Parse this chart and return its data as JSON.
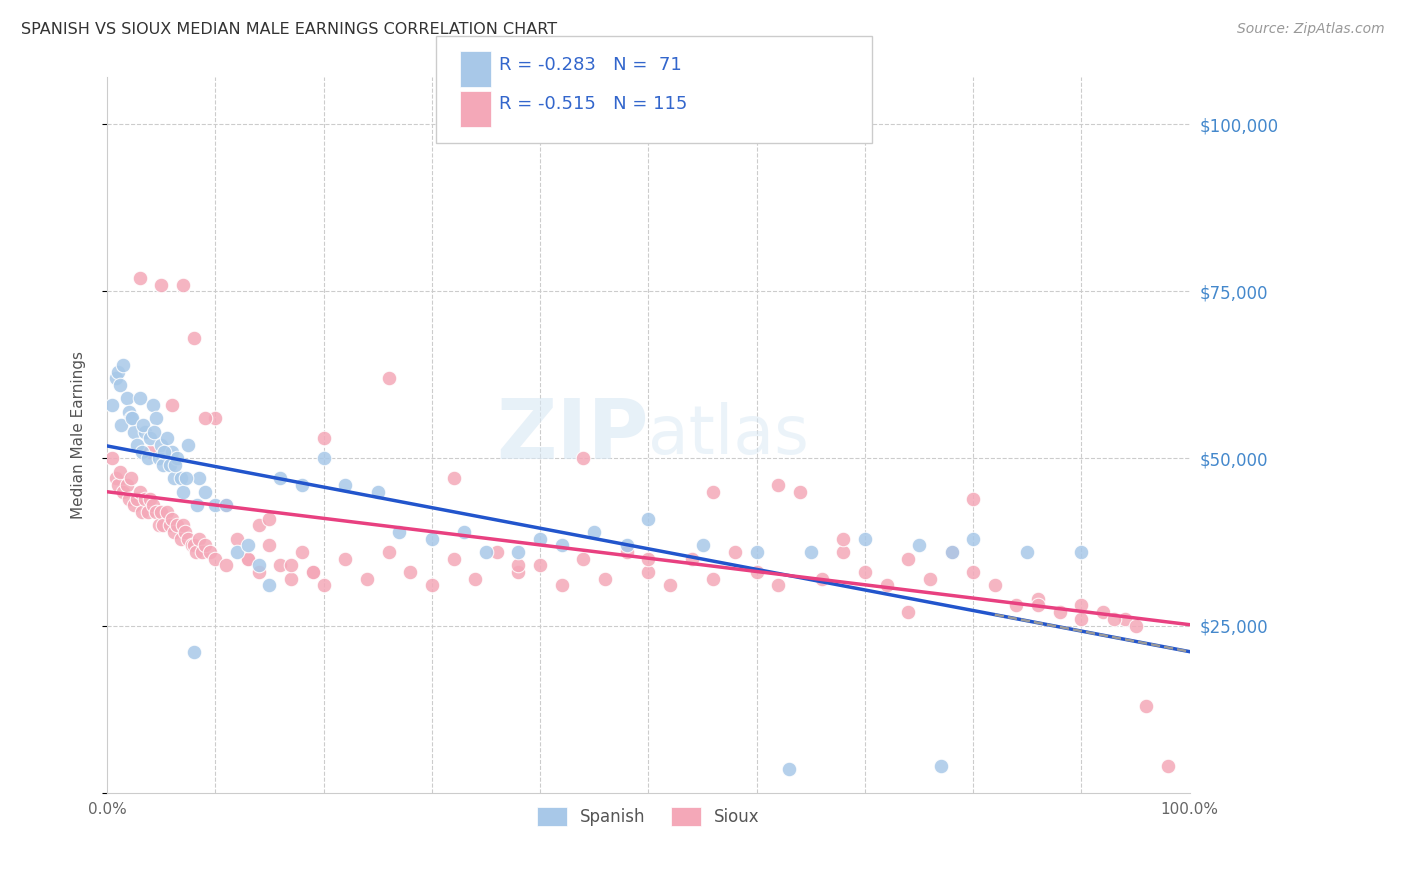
{
  "title": "SPANISH VS SIOUX MEDIAN MALE EARNINGS CORRELATION CHART",
  "source": "Source: ZipAtlas.com",
  "ylabel": "Median Male Earnings",
  "spanish_R": -0.283,
  "spanish_N": 71,
  "sioux_R": -0.515,
  "sioux_N": 115,
  "spanish_color": "#a8c8e8",
  "sioux_color": "#f4a8b8",
  "regression_blue": "#2255cc",
  "regression_pink": "#e84080",
  "regression_dashed": "#aaaaaa",
  "watermark": "ZIPatlas",
  "background_color": "#ffffff",
  "spanish_x": [
    0.5,
    0.8,
    1.0,
    1.2,
    1.5,
    1.8,
    2.0,
    2.2,
    2.5,
    2.8,
    3.0,
    3.2,
    3.5,
    3.8,
    4.0,
    4.2,
    4.5,
    4.8,
    5.0,
    5.2,
    5.5,
    5.8,
    6.0,
    6.2,
    6.5,
    6.8,
    7.0,
    7.5,
    8.0,
    8.5,
    9.0,
    10.0,
    11.0,
    12.0,
    13.0,
    14.0,
    15.0,
    16.0,
    18.0,
    20.0,
    22.0,
    25.0,
    27.0,
    30.0,
    33.0,
    35.0,
    38.0,
    40.0,
    42.0,
    45.0,
    48.0,
    50.0,
    55.0,
    60.0,
    65.0,
    70.0,
    75.0,
    78.0,
    80.0,
    85.0,
    90.0,
    63.0,
    77.0,
    1.3,
    2.3,
    3.3,
    4.3,
    5.3,
    6.3,
    7.3,
    8.3
  ],
  "spanish_y": [
    58000,
    62000,
    63000,
    61000,
    64000,
    59000,
    57000,
    56000,
    54000,
    52000,
    59000,
    51000,
    54000,
    50000,
    53000,
    58000,
    56000,
    50000,
    52000,
    49000,
    53000,
    49000,
    51000,
    47000,
    50000,
    47000,
    45000,
    52000,
    21000,
    47000,
    45000,
    43000,
    43000,
    36000,
    37000,
    34000,
    31000,
    47000,
    46000,
    50000,
    46000,
    45000,
    39000,
    38000,
    39000,
    36000,
    36000,
    38000,
    37000,
    39000,
    37000,
    41000,
    37000,
    36000,
    36000,
    38000,
    37000,
    36000,
    38000,
    36000,
    36000,
    3500,
    4000,
    55000,
    56000,
    55000,
    54000,
    51000,
    49000,
    47000,
    43000
  ],
  "sioux_x": [
    0.5,
    0.8,
    1.0,
    1.2,
    1.5,
    1.8,
    2.0,
    2.2,
    2.5,
    2.8,
    3.0,
    3.2,
    3.5,
    3.8,
    4.0,
    4.2,
    4.5,
    4.8,
    5.0,
    5.2,
    5.5,
    5.8,
    6.0,
    6.2,
    6.5,
    6.8,
    7.0,
    7.2,
    7.5,
    7.8,
    8.0,
    8.2,
    8.5,
    8.8,
    9.0,
    9.5,
    10.0,
    11.0,
    12.0,
    13.0,
    14.0,
    15.0,
    16.0,
    17.0,
    18.0,
    19.0,
    20.0,
    22.0,
    24.0,
    26.0,
    28.0,
    30.0,
    32.0,
    34.0,
    36.0,
    38.0,
    40.0,
    42.0,
    44.0,
    46.0,
    48.0,
    50.0,
    52.0,
    54.0,
    56.0,
    58.0,
    60.0,
    62.0,
    64.0,
    66.0,
    68.0,
    70.0,
    72.0,
    74.0,
    76.0,
    78.0,
    80.0,
    82.0,
    84.0,
    86.0,
    88.0,
    90.0,
    92.0,
    94.0,
    96.0,
    98.0,
    4.0,
    6.0,
    8.0,
    10.0,
    14.0,
    20.0,
    26.0,
    32.0,
    38.0,
    44.0,
    50.0,
    56.0,
    62.0,
    68.0,
    74.0,
    80.0,
    86.0,
    90.0,
    93.0,
    95.0,
    3.0,
    5.0,
    7.0,
    9.0,
    11.0,
    13.0,
    15.0,
    17.0,
    19.0
  ],
  "sioux_y": [
    50000,
    47000,
    46000,
    48000,
    45000,
    46000,
    44000,
    47000,
    43000,
    44000,
    45000,
    42000,
    44000,
    42000,
    44000,
    43000,
    42000,
    40000,
    42000,
    40000,
    42000,
    40000,
    41000,
    39000,
    40000,
    38000,
    40000,
    39000,
    38000,
    37000,
    37000,
    36000,
    38000,
    36000,
    37000,
    36000,
    35000,
    34000,
    38000,
    35000,
    33000,
    37000,
    34000,
    32000,
    36000,
    33000,
    31000,
    35000,
    32000,
    36000,
    33000,
    31000,
    35000,
    32000,
    36000,
    33000,
    34000,
    31000,
    35000,
    32000,
    36000,
    33000,
    31000,
    35000,
    32000,
    36000,
    33000,
    31000,
    45000,
    32000,
    36000,
    33000,
    31000,
    35000,
    32000,
    36000,
    33000,
    31000,
    28000,
    29000,
    27000,
    28000,
    27000,
    26000,
    13000,
    4000,
    51000,
    58000,
    68000,
    56000,
    40000,
    53000,
    62000,
    47000,
    34000,
    50000,
    35000,
    45000,
    46000,
    38000,
    27000,
    44000,
    28000,
    26000,
    26000,
    25000,
    77000,
    76000,
    76000,
    56000,
    43000,
    35000,
    41000,
    34000,
    33000
  ]
}
